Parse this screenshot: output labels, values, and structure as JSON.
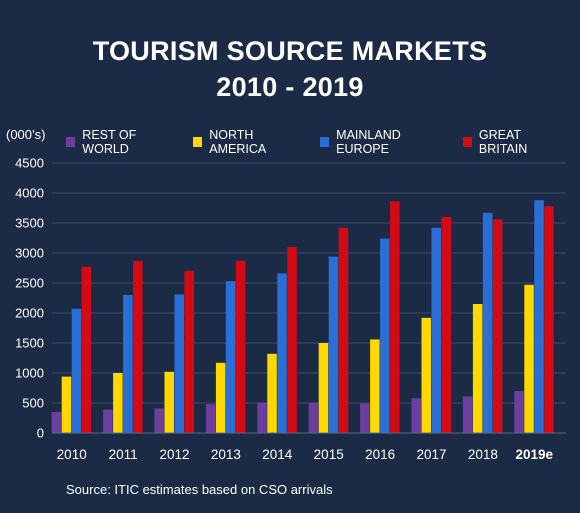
{
  "title_line1": "TOURISM SOURCE MARKETS",
  "title_line2": "2010 - 2019",
  "unit": "(000’s)",
  "source": "Source: ITIC estimates based on CSO arrivals",
  "colors": {
    "background": "#1c2b45",
    "rest_of_world": "#6b3fa0",
    "north_america": "#ffd800",
    "mainland_europe": "#2a6fd6",
    "great_britain": "#d40a14"
  },
  "chart_data": {
    "type": "bar",
    "categories": [
      "2010",
      "2011",
      "2012",
      "2013",
      "2014",
      "2015",
      "2016",
      "2017",
      "2018",
      "2019e"
    ],
    "ylim": [
      0,
      4500
    ],
    "yticks": [
      0,
      500,
      1000,
      1500,
      2000,
      2500,
      3000,
      3500,
      4000,
      4500
    ],
    "grid": true,
    "legend_position": "top",
    "series": [
      {
        "name": "REST OF WORLD",
        "color": "#6b3fa0",
        "values": [
          350,
          390,
          410,
          480,
          510,
          510,
          490,
          580,
          610,
          700
        ]
      },
      {
        "name": "NORTH AMERICA",
        "color": "#ffd800",
        "values": [
          940,
          1000,
          1020,
          1170,
          1320,
          1500,
          1560,
          1920,
          2150,
          2470
        ]
      },
      {
        "name": "MAINLAND EUROPE",
        "color": "#2a6fd6",
        "values": [
          2070,
          2300,
          2310,
          2530,
          2660,
          2940,
          3240,
          3420,
          3670,
          3880
        ]
      },
      {
        "name": "GREAT BRITAIN",
        "color": "#d40a14",
        "values": [
          2770,
          2870,
          2700,
          2870,
          3100,
          3420,
          3860,
          3600,
          3560,
          3780
        ]
      }
    ]
  }
}
